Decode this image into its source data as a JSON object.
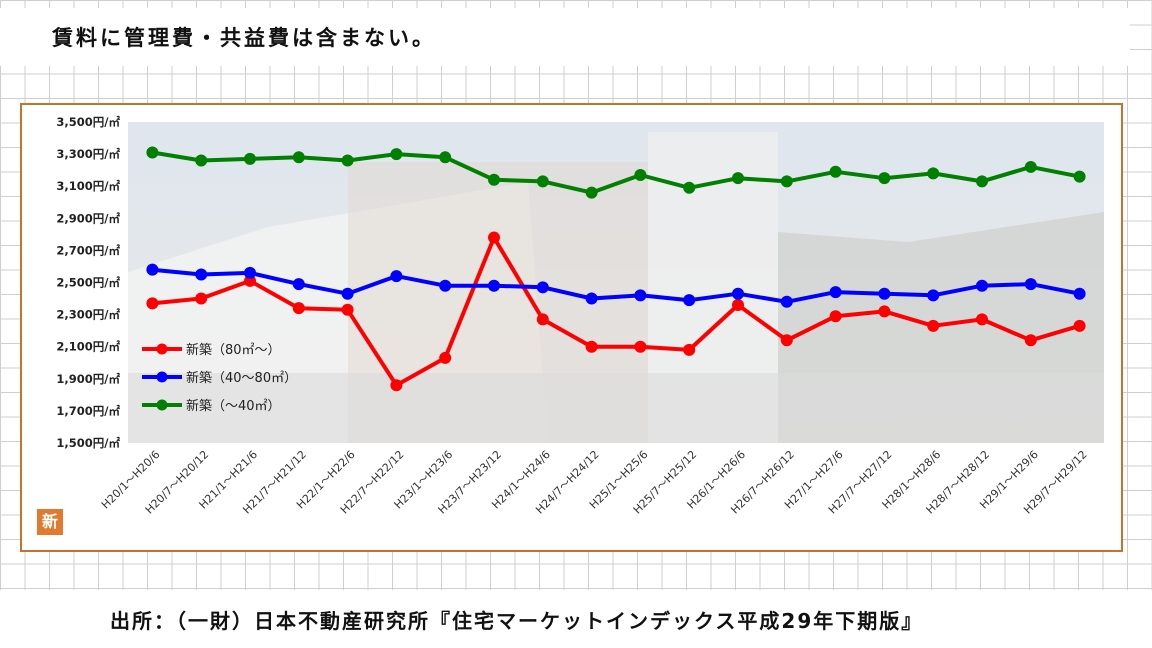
{
  "note": "賃料に管理費・共益費は含まない。",
  "source": "出所：（一財）日本不動産研究所『住宅マーケットインデックス平成29年下期版』",
  "badge": "新",
  "chart_data": {
    "type": "line",
    "title": "",
    "xlabel": "",
    "ylabel": "",
    "ylim": [
      1500,
      3500
    ],
    "ytick_step": 200,
    "y_unit": "円/㎡",
    "legend_position": "left-center",
    "categories": [
      "H20/1～H20/6",
      "H20/7～H20/12",
      "H21/1～H21/6",
      "H21/7～H21/12",
      "H22/1～H22/6",
      "H22/7～H22/12",
      "H23/1～H23/6",
      "H23/7～H23/12",
      "H24/1～H24/6",
      "H24/7～H24/12",
      "H25/1～H25/6",
      "H25/7～H25/12",
      "H26/1～H26/6",
      "H26/7～H26/12",
      "H27/1～H27/6",
      "H27/7～H27/12",
      "H28/1～H28/6",
      "H28/7～H28/12",
      "H29/1～H29/6",
      "H29/7～H29/12"
    ],
    "series": [
      {
        "name": "新築（80㎡～）",
        "color": "#ff0000",
        "values": [
          2370,
          2400,
          2510,
          2340,
          2330,
          1860,
          2030,
          2780,
          2270,
          2100,
          2100,
          2080,
          2360,
          2140,
          2290,
          2320,
          2230,
          2270,
          2140,
          2230
        ]
      },
      {
        "name": "新築（40～80㎡）",
        "color": "#0000ff",
        "values": [
          2580,
          2550,
          2560,
          2490,
          2430,
          2540,
          2480,
          2480,
          2470,
          2400,
          2420,
          2390,
          2430,
          2380,
          2440,
          2430,
          2420,
          2480,
          2490,
          2430
        ]
      },
      {
        "name": "新築（～40㎡）",
        "color": "#008000",
        "values": [
          3310,
          3260,
          3270,
          3280,
          3260,
          3300,
          3280,
          3140,
          3130,
          3060,
          3170,
          3090,
          3150,
          3130,
          3190,
          3150,
          3180,
          3130,
          3220,
          3160
        ]
      }
    ]
  }
}
